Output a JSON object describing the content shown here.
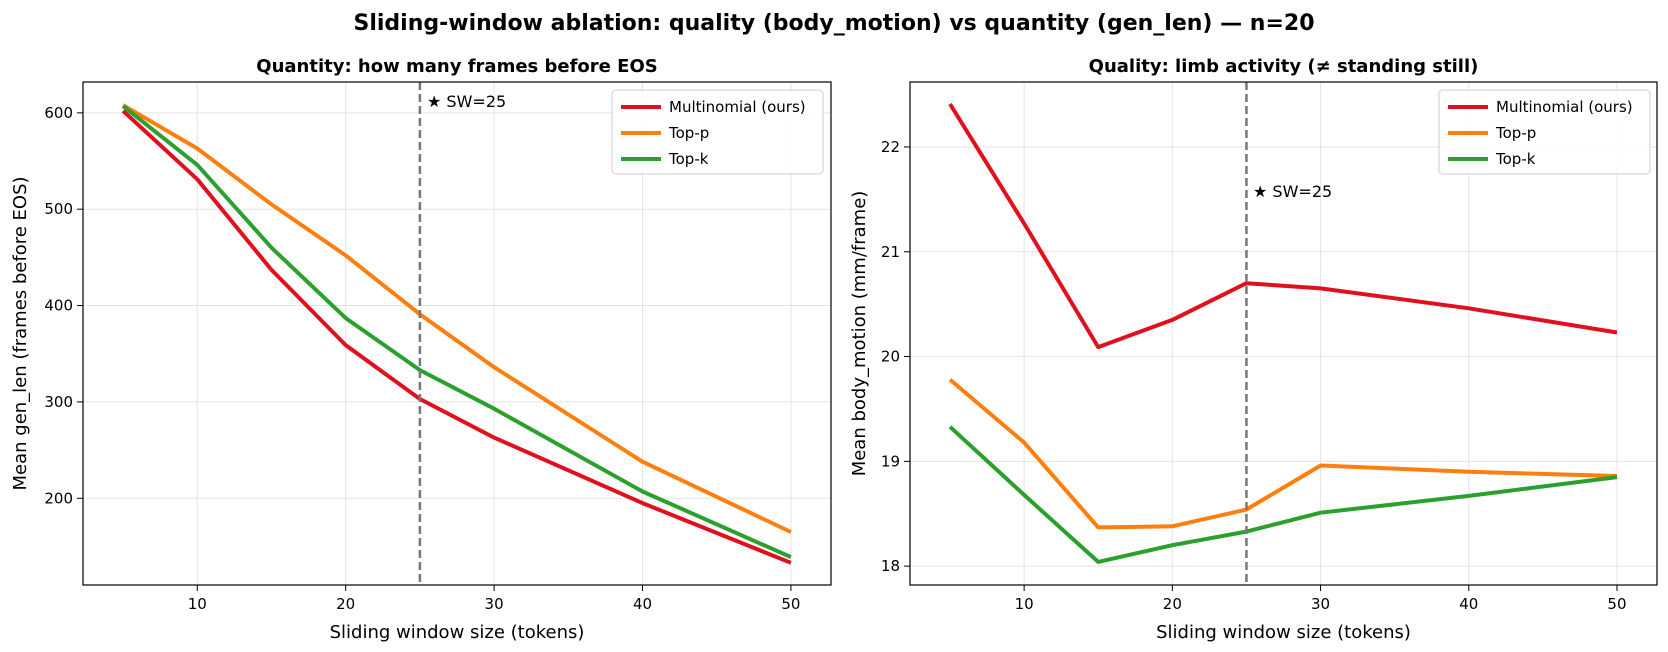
{
  "suptitle": "Sliding-window ablation: quality (body_motion) vs quantity (gen_len) — n=20",
  "colors": {
    "Multinomial (ours)": "#e0101e",
    "Top-p": "#ff7f0e",
    "Top-k": "#2ca02c",
    "marker_line": "#777777"
  },
  "chart_data": [
    {
      "type": "line",
      "title": "Quantity: how many frames before EOS",
      "xlabel": "Sliding window size (tokens)",
      "ylabel": "Mean gen_len (frames before EOS)",
      "x": [
        5,
        10,
        15,
        20,
        25,
        30,
        40,
        50
      ],
      "xlim": [
        2.3,
        52.7
      ],
      "ylim": [
        110,
        632
      ],
      "xticks": [
        10,
        20,
        30,
        40,
        50
      ],
      "yticks": [
        200,
        300,
        400,
        500,
        600
      ],
      "grid": true,
      "legend": "top-right",
      "series": [
        {
          "name": "Multinomial (ours)",
          "values": [
            602,
            531,
            437,
            359,
            303,
            263,
            195,
            133
          ]
        },
        {
          "name": "Top-p",
          "values": [
            608,
            563,
            505,
            452,
            391,
            336,
            238,
            165
          ]
        },
        {
          "name": "Top-k",
          "values": [
            607,
            546,
            460,
            387,
            333,
            293,
            207,
            139
          ]
        }
      ],
      "vline": {
        "x": 25,
        "label": "★ SW=25"
      }
    },
    {
      "type": "line",
      "title": "Quality: limb activity (≠ standing still)",
      "xlabel": "Sliding window size (tokens)",
      "ylabel": "Mean body_motion (mm/frame)",
      "x": [
        5,
        10,
        15,
        20,
        25,
        30,
        40,
        50
      ],
      "xlim": [
        2.3,
        52.7
      ],
      "ylim": [
        17.82,
        22.62
      ],
      "xticks": [
        10,
        20,
        30,
        40,
        50
      ],
      "yticks": [
        18,
        19,
        20,
        21,
        22
      ],
      "grid": true,
      "legend": "top-right",
      "series": [
        {
          "name": "Multinomial (ours)",
          "values": [
            22.41,
            21.27,
            20.09,
            20.35,
            20.7,
            20.65,
            20.46,
            20.23
          ]
        },
        {
          "name": "Top-p",
          "values": [
            19.78,
            19.18,
            18.37,
            18.38,
            18.54,
            18.96,
            18.9,
            18.86
          ]
        },
        {
          "name": "Top-k",
          "values": [
            19.33,
            18.68,
            18.04,
            18.2,
            18.33,
            18.51,
            18.67,
            18.85
          ]
        }
      ],
      "vline": {
        "x": 25,
        "label": "★ SW=25"
      }
    }
  ]
}
